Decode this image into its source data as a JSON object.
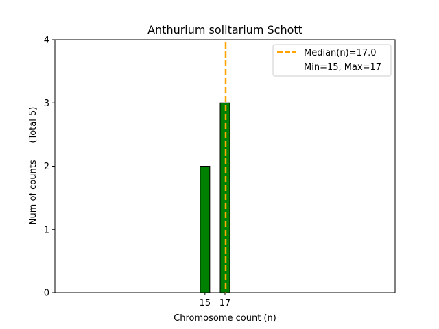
{
  "chart_data": {
    "type": "bar",
    "title": "Anthurium solitarium Schott",
    "xlabel": "Chromosome count (n)",
    "ylabel": "Num of counts      (Total 5)",
    "x_ticks": [
      15,
      17
    ],
    "y_ticks": [
      0,
      1,
      2,
      3,
      4
    ],
    "ylim": [
      0,
      4
    ],
    "xlim": [
      0,
      34
    ],
    "bars": [
      {
        "x": 15,
        "value": 2
      },
      {
        "x": 17,
        "value": 3
      }
    ],
    "bar_color": "#008000",
    "bar_edge_color": "#000000",
    "median": {
      "value": 17.0,
      "color": "#FFA500",
      "label": "Median(n)=17.0"
    },
    "legend": {
      "position": "top-right",
      "entries": [
        "Median(n)=17.0",
        "Min=15, Max=17"
      ]
    },
    "grid": false
  }
}
